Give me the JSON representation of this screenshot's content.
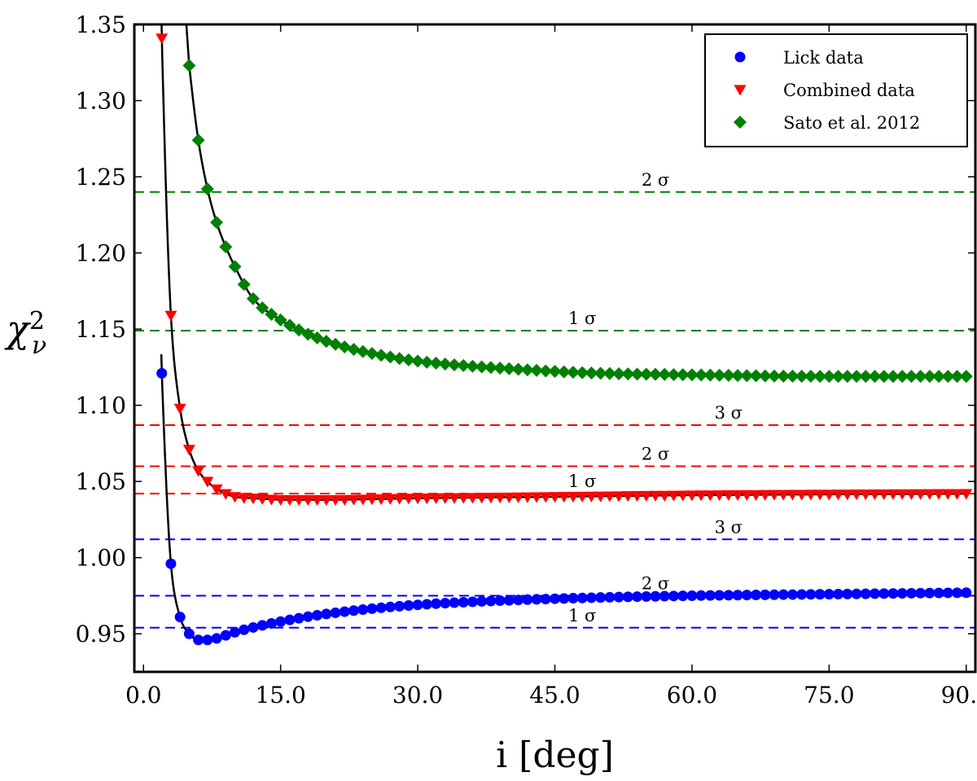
{
  "chart_data": {
    "type": "scatter",
    "title": "",
    "xlabel": "i [deg]",
    "ylabel": "χ²_ν",
    "xlim": [
      -1,
      91
    ],
    "ylim": [
      0.925,
      1.35
    ],
    "xticks": [
      0,
      15,
      30,
      45,
      60,
      75,
      90
    ],
    "xtick_labels": [
      "0.0",
      "15.0",
      "30.0",
      "45.0",
      "60.0",
      "75.0",
      "90.0"
    ],
    "yticks": [
      0.95,
      1.0,
      1.05,
      1.1,
      1.15,
      1.2,
      1.25,
      1.3,
      1.35
    ],
    "ytick_labels": [
      "0.95",
      "1.00",
      "1.05",
      "1.10",
      "1.15",
      "1.20",
      "1.25",
      "1.30",
      "1.35"
    ],
    "legend_position": "top-right",
    "series": [
      {
        "name": "Lick data",
        "marker": "circle",
        "color": "#0000ff",
        "x_start": 2,
        "x_end": 90,
        "x_step": 1,
        "key_points": [
          [
            2,
            1.121
          ],
          [
            3,
            0.996
          ],
          [
            4,
            0.961
          ],
          [
            5,
            0.95
          ],
          [
            6,
            0.946
          ],
          [
            7,
            0.946
          ],
          [
            8,
            0.947
          ],
          [
            10,
            0.951
          ],
          [
            15,
            0.958
          ],
          [
            20,
            0.963
          ],
          [
            30,
            0.969
          ],
          [
            45,
            0.973
          ],
          [
            60,
            0.975
          ],
          [
            75,
            0.976
          ],
          [
            90,
            0.977
          ]
        ]
      },
      {
        "name": "Combined data",
        "marker": "triangle-down",
        "color": "#ff0000",
        "x_start": 2,
        "x_end": 90,
        "x_step": 1,
        "key_points": [
          [
            2,
            1.341
          ],
          [
            3,
            1.159
          ],
          [
            4,
            1.098
          ],
          [
            5,
            1.071
          ],
          [
            6,
            1.057
          ],
          [
            7,
            1.05
          ],
          [
            8,
            1.045
          ],
          [
            10,
            1.04
          ],
          [
            12,
            1.039
          ],
          [
            16,
            1.038
          ],
          [
            20,
            1.038
          ],
          [
            30,
            1.039
          ],
          [
            45,
            1.04
          ],
          [
            60,
            1.041
          ],
          [
            90,
            1.042
          ]
        ]
      },
      {
        "name": "Sato et al. 2012",
        "marker": "diamond",
        "color": "#008000",
        "x_start": 5,
        "x_end": 90,
        "x_step": 1,
        "key_points": [
          [
            5,
            1.323
          ],
          [
            6,
            1.274
          ],
          [
            7,
            1.242
          ],
          [
            8,
            1.22
          ],
          [
            9,
            1.204
          ],
          [
            10,
            1.191
          ],
          [
            12,
            1.17
          ],
          [
            15,
            1.156
          ],
          [
            20,
            1.142
          ],
          [
            25,
            1.134
          ],
          [
            30,
            1.129
          ],
          [
            40,
            1.124
          ],
          [
            50,
            1.121
          ],
          [
            60,
            1.12
          ],
          [
            75,
            1.119
          ],
          [
            90,
            1.119
          ]
        ]
      }
    ],
    "reference_lines": [
      {
        "y": 1.24,
        "color": "#008000",
        "label": "2 σ",
        "label_x": 56
      },
      {
        "y": 1.149,
        "color": "#008000",
        "label": "1 σ",
        "label_x": 48
      },
      {
        "y": 1.087,
        "color": "#ff0000",
        "label": "3 σ",
        "label_x": 64
      },
      {
        "y": 1.06,
        "color": "#ff0000",
        "label": "2 σ",
        "label_x": 56
      },
      {
        "y": 1.042,
        "color": "#ff0000",
        "label": "1 σ",
        "label_x": 48
      },
      {
        "y": 1.012,
        "color": "#0000ff",
        "label": "3 σ",
        "label_x": 64
      },
      {
        "y": 0.975,
        "color": "#0000ff",
        "label": "2 σ",
        "label_x": 56
      },
      {
        "y": 0.954,
        "color": "#0000ff",
        "label": "1 σ",
        "label_x": 48
      }
    ]
  }
}
